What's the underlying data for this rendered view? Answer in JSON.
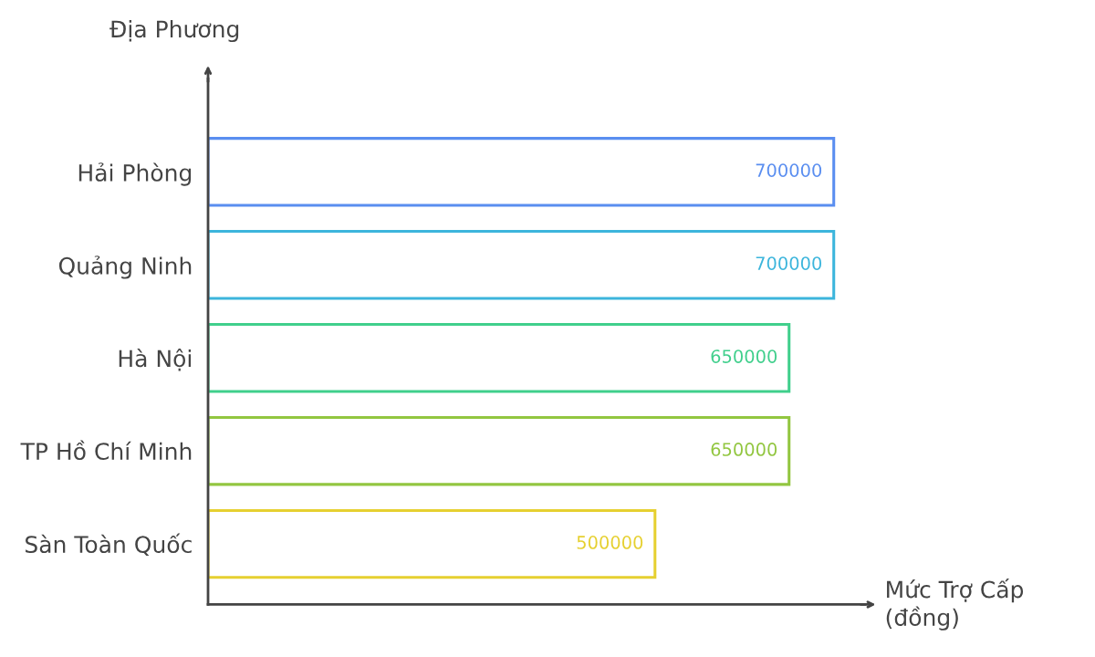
{
  "chart_data": {
    "type": "bar",
    "orientation": "horizontal",
    "ylabel": "Địa Phương",
    "xlabel": "Mức Trợ Cấp\n(đồng)",
    "categories": [
      "Hải Phòng",
      "Quảng Ninh",
      "Hà Nội",
      "TP Hồ Chí Minh",
      "Sàn Toàn Quốc"
    ],
    "values": [
      700000,
      700000,
      650000,
      650000,
      500000
    ],
    "colors": [
      "#5a8ef0",
      "#3cb5dc",
      "#40cf8c",
      "#92c640",
      "#e6d030"
    ],
    "data_labels": true,
    "grid": false,
    "legend": false
  }
}
